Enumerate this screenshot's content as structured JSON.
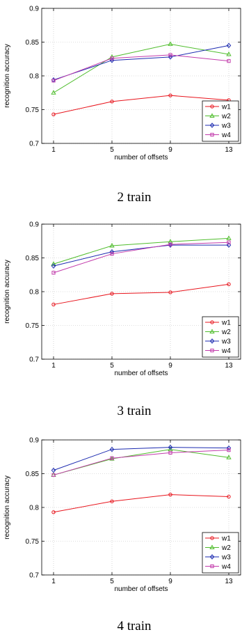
{
  "chart_data": [
    {
      "type": "line",
      "caption": "2 train",
      "xlabel": "number of offsets",
      "ylabel": "recognition accuracy",
      "x": [
        1,
        5,
        9,
        13
      ],
      "xticks": [
        "1",
        "5",
        "9",
        "13"
      ],
      "ylim": [
        0.7,
        0.9
      ],
      "yticks": [
        "0.7",
        "0.75",
        "0.8",
        "0.85",
        "0.9"
      ],
      "grid": true,
      "legend_position": "bottom-right",
      "series": [
        {
          "name": "w1",
          "color": "#e8141c",
          "marker": "circle",
          "values": [
            0.743,
            0.762,
            0.771,
            0.764
          ]
        },
        {
          "name": "w2",
          "color": "#4fbd2c",
          "marker": "triangle",
          "values": [
            0.775,
            0.828,
            0.847,
            0.832
          ]
        },
        {
          "name": "w3",
          "color": "#1b2ab0",
          "marker": "diamond",
          "values": [
            0.794,
            0.823,
            0.828,
            0.845
          ]
        },
        {
          "name": "w4",
          "color": "#c23aab",
          "marker": "square",
          "values": [
            0.793,
            0.826,
            0.831,
            0.822
          ]
        }
      ]
    },
    {
      "type": "line",
      "caption": "3 train",
      "xlabel": "number of offsets",
      "ylabel": "recognition accuracy",
      "x": [
        1,
        5,
        9,
        13
      ],
      "xticks": [
        "1",
        "5",
        "9",
        "13"
      ],
      "ylim": [
        0.7,
        0.9
      ],
      "yticks": [
        "0.7",
        "0.75",
        "0.8",
        "0.85",
        "0.9"
      ],
      "grid": true,
      "legend_position": "bottom-right",
      "series": [
        {
          "name": "w1",
          "color": "#e8141c",
          "marker": "circle",
          "values": [
            0.781,
            0.797,
            0.799,
            0.811
          ]
        },
        {
          "name": "w2",
          "color": "#4fbd2c",
          "marker": "triangle",
          "values": [
            0.841,
            0.868,
            0.874,
            0.879
          ]
        },
        {
          "name": "w3",
          "color": "#1b2ab0",
          "marker": "diamond",
          "values": [
            0.838,
            0.859,
            0.869,
            0.869
          ]
        },
        {
          "name": "w4",
          "color": "#c23aab",
          "marker": "square",
          "values": [
            0.828,
            0.856,
            0.87,
            0.873
          ]
        }
      ]
    },
    {
      "type": "line",
      "caption": "4 train",
      "xlabel": "number of offsets",
      "ylabel": "recognition accuracy",
      "x": [
        1,
        5,
        9,
        13
      ],
      "xticks": [
        "1",
        "5",
        "9",
        "13"
      ],
      "ylim": [
        0.7,
        0.9
      ],
      "yticks": [
        "0.7",
        "0.75",
        "0.8",
        "0.85",
        "0.9"
      ],
      "grid": true,
      "legend_position": "bottom-right",
      "series": [
        {
          "name": "w1",
          "color": "#e8141c",
          "marker": "circle",
          "values": [
            0.793,
            0.809,
            0.819,
            0.816
          ]
        },
        {
          "name": "w2",
          "color": "#4fbd2c",
          "marker": "triangle",
          "values": [
            0.848,
            0.872,
            0.886,
            0.874
          ]
        },
        {
          "name": "w3",
          "color": "#1b2ab0",
          "marker": "diamond",
          "values": [
            0.855,
            0.886,
            0.889,
            0.888
          ]
        },
        {
          "name": "w4",
          "color": "#c23aab",
          "marker": "square",
          "values": [
            0.848,
            0.873,
            0.881,
            0.885
          ]
        }
      ]
    }
  ]
}
